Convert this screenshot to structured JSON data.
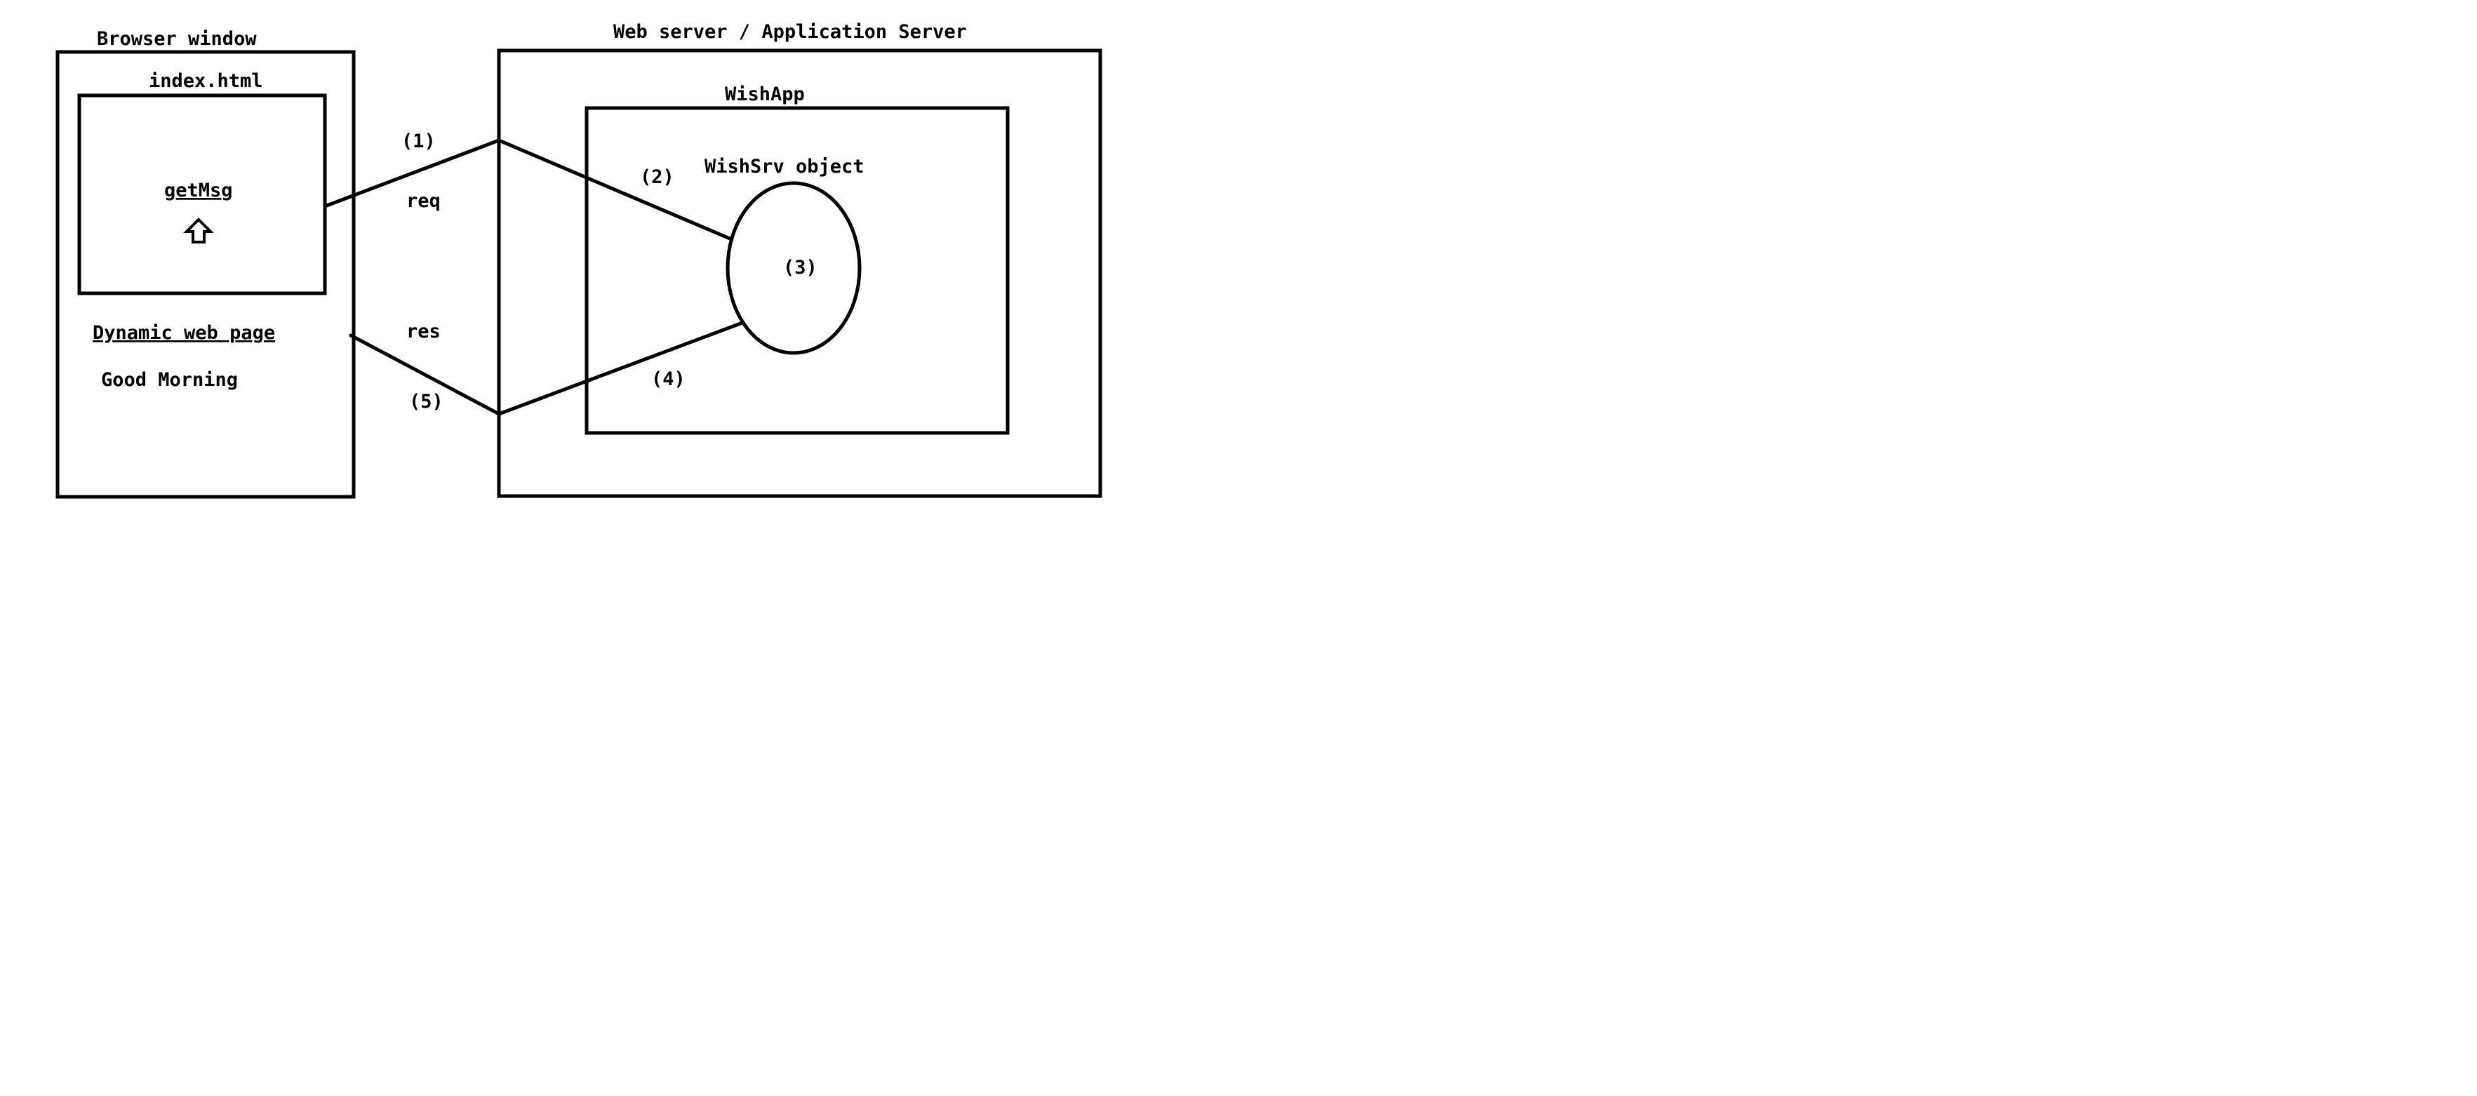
{
  "browser": {
    "title": "Browser window",
    "page_file": "index.html",
    "link_label": "getMsg",
    "cursor_icon": "up-arrow-icon",
    "dynamic_page_label": "Dynamic web page",
    "output_text": "Good Morning"
  },
  "server": {
    "title": "Web server / Application Server",
    "app_name": "WishApp",
    "servlet_object_label": "WishSrv object",
    "servlet_step": "(3)"
  },
  "flow": {
    "step1": "(1)",
    "step2": "(2)",
    "step4": "(4)",
    "step5": "(5)",
    "request_label": "req",
    "response_label": "res"
  },
  "colors": {
    "stroke": "#000000",
    "background": "#ffffff"
  }
}
